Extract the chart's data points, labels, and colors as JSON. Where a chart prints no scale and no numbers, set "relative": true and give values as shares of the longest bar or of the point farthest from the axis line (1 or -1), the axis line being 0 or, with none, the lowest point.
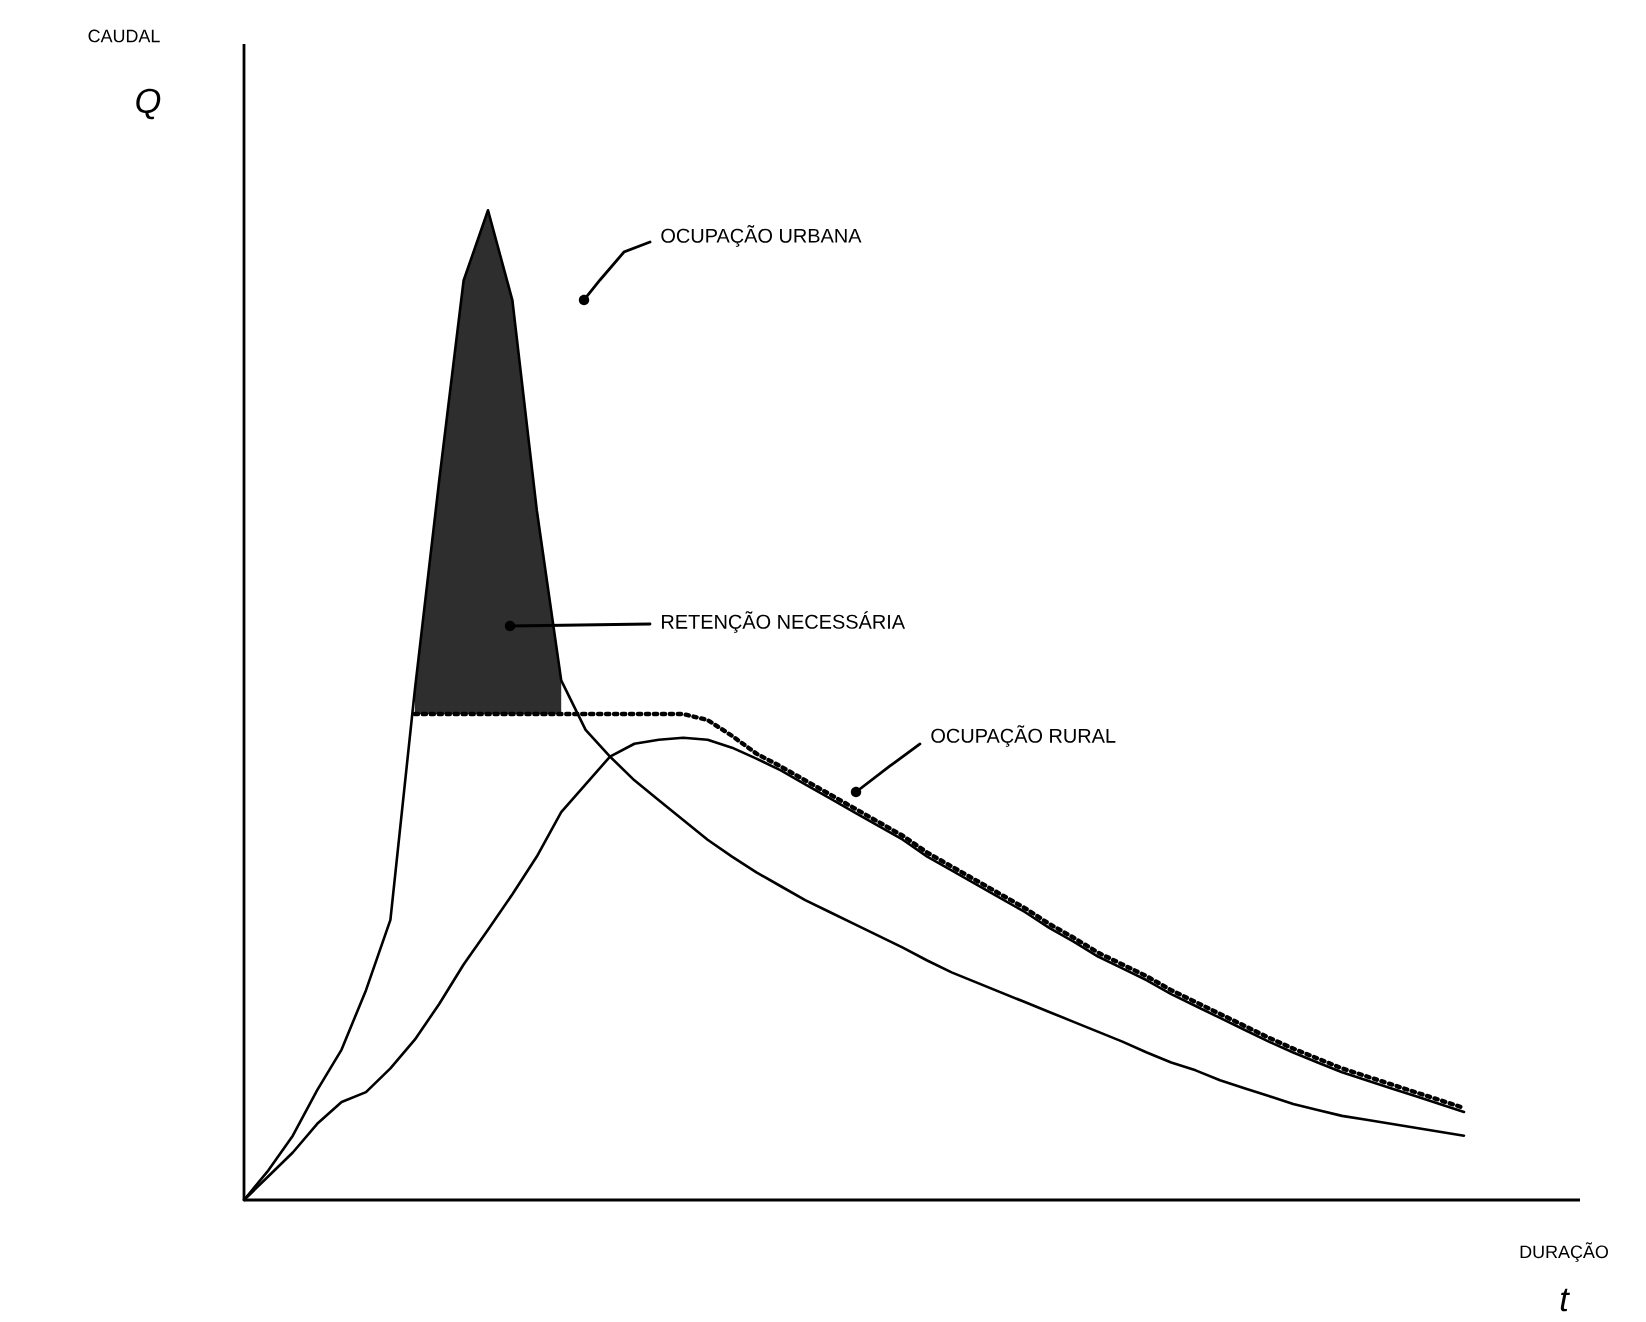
{
  "chart_data": {
    "type": "line",
    "relative": true,
    "xlabel": "DURAÇÃO",
    "categories": [
      null,
      null,
      null,
      null,
      null,
      null,
      null,
      null,
      null,
      null,
      null,
      null,
      null,
      null,
      null,
      null,
      null,
      null,
      null,
      null,
      null,
      null,
      null,
      null,
      null,
      null,
      null,
      null,
      null,
      null,
      null,
      null,
      null,
      null,
      null,
      null,
      null,
      null,
      null,
      null,
      null,
      null,
      null,
      null,
      null,
      null,
      null,
      null,
      null,
      null,
      null
    ],
    "series": [
      {
        "color": "#000000",
        "line_style": "solid",
        "values": [
          0,
          0.03,
          0.065,
          0.111,
          0.152,
          0.212,
          0.283,
          0.515,
          0.727,
          0.929,
          1,
          0.909,
          0.697,
          0.525,
          0.475,
          0.448,
          0.424,
          0.404,
          0.384,
          0.364,
          0.347,
          0.331,
          0.317,
          0.303,
          0.291,
          0.279,
          0.267,
          0.255,
          0.242,
          0.23,
          0.22,
          0.21,
          0.2,
          0.19,
          0.18,
          0.17,
          0.16,
          0.149,
          0.139,
          0.131,
          0.121,
          0.113,
          0.105,
          0.097,
          0.091,
          0.085,
          0.081,
          0.077,
          0.073,
          0.069,
          0.065
        ],
        "lower": [
          null,
          null,
          null,
          null,
          null,
          null,
          null,
          0.491,
          0.491,
          0.491,
          0.491,
          0.491,
          0.491,
          0.491,
          null,
          null,
          null,
          null,
          null,
          null,
          null,
          null,
          null,
          null,
          null,
          null,
          null,
          null,
          null,
          null,
          null,
          null,
          null,
          null,
          null,
          null,
          null,
          null,
          null,
          null,
          null,
          null,
          null,
          null,
          null,
          null,
          null,
          null,
          null,
          null,
          null
        ],
        "upper": [
          null,
          null,
          null,
          null,
          null,
          null,
          null,
          0.515,
          0.727,
          0.929,
          1,
          0.909,
          0.697,
          0.525,
          null,
          null,
          null,
          null,
          null,
          null,
          null,
          null,
          null,
          null,
          null,
          null,
          null,
          null,
          null,
          null,
          null,
          null,
          null,
          null,
          null,
          null,
          null,
          null,
          null,
          null,
          null,
          null,
          null,
          null,
          null,
          null,
          null,
          null,
          null,
          null,
          null
        ]
      },
      {
        "color": "#000000",
        "line_style": "solid",
        "values": [
          0,
          0.024,
          0.048,
          0.077,
          0.099,
          0.109,
          0.133,
          0.162,
          0.198,
          0.238,
          0.273,
          0.309,
          0.347,
          0.392,
          0.42,
          0.448,
          0.461,
          0.465,
          0.467,
          0.465,
          0.457,
          0.446,
          0.434,
          0.42,
          0.406,
          0.392,
          0.378,
          0.364,
          0.347,
          0.333,
          0.319,
          0.305,
          0.291,
          0.275,
          0.261,
          0.246,
          0.234,
          0.222,
          0.208,
          0.196,
          0.184,
          0.172,
          0.16,
          0.149,
          0.139,
          0.129,
          0.121,
          0.113,
          0.105,
          0.097,
          0.089
        ]
      },
      {
        "color": "#000000",
        "line_style": "dotted",
        "values": [
          null,
          null,
          null,
          null,
          null,
          null,
          null,
          0.491,
          0.491,
          0.491,
          0.491,
          0.491,
          0.491,
          0.491,
          0.491,
          0.491,
          0.491,
          0.491,
          0.491,
          0.485,
          0.469,
          0.451,
          0.438,
          0.424,
          0.41,
          0.396,
          0.382,
          0.368,
          0.351,
          0.337,
          0.323,
          0.309,
          0.295,
          0.279,
          0.265,
          0.25,
          0.238,
          0.226,
          0.212,
          0.2,
          0.188,
          0.176,
          0.164,
          0.153,
          0.143,
          0.133,
          0.125,
          0.117,
          0.109,
          0.101,
          0.093
        ]
      }
    ],
    "annotations": [
      "OCUPAÇÃO URBANA",
      "RETENÇÃO NECESSÁRIA",
      "OCUPAÇÃO RURAL",
      "CAUDAL",
      "Q",
      "t"
    ]
  }
}
